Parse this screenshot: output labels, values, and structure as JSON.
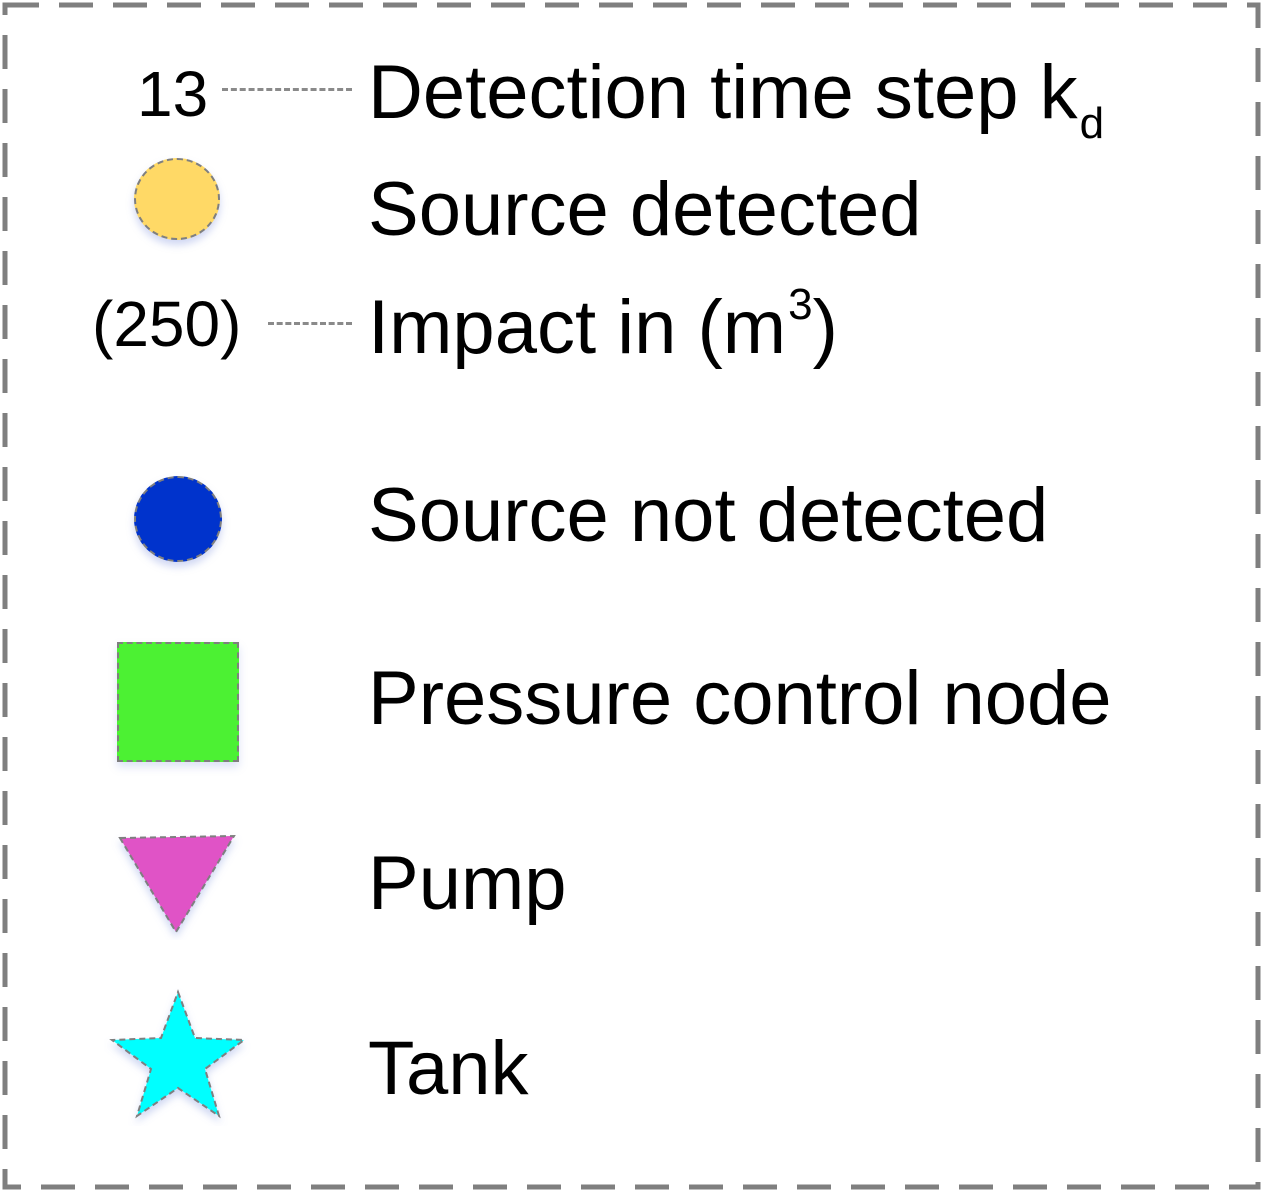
{
  "legend": {
    "items": [
      {
        "key": "detection_time_step",
        "sample_value": "13",
        "label": "Detection time step k",
        "label_subscript": "d"
      },
      {
        "key": "source_detected",
        "label": "Source detected",
        "color": "#ffd966",
        "icon": "circle-icon"
      },
      {
        "key": "impact",
        "sample_value": "(250)",
        "label": "Impact in (m",
        "label_superscript": "3",
        "label_suffix": ")"
      },
      {
        "key": "source_not_detected",
        "label": "Source not detected",
        "color": "#0033cc",
        "icon": "circle-icon"
      },
      {
        "key": "pressure_control_node",
        "label": "Pressure control node",
        "color": "#4cf133",
        "icon": "square-icon"
      },
      {
        "key": "pump",
        "label": "Pump",
        "color": "#e052c6",
        "icon": "triangle-down-icon"
      },
      {
        "key": "tank",
        "label": "Tank",
        "color": "#00ffff",
        "icon": "star-icon"
      }
    ],
    "frame_style": "dashed gray border"
  }
}
